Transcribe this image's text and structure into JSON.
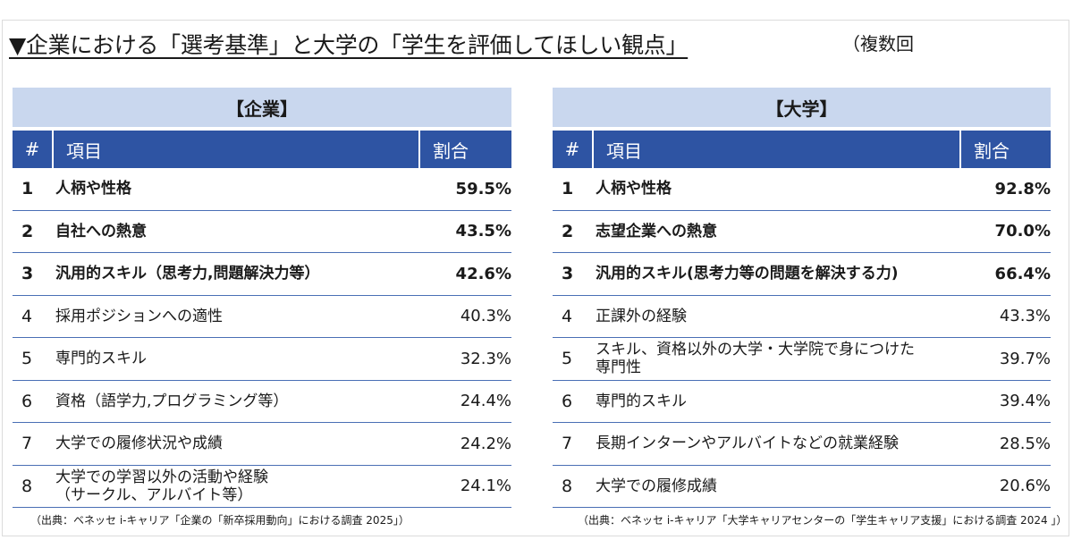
{
  "heading": "▼企業における「選考基準」と大学の「学生を評価してほしい観点」",
  "note": "（複数回",
  "left": {
    "group_title": "【企業】",
    "headers": {
      "num": "#",
      "item": "項目",
      "rate": "割合"
    },
    "rows": [
      {
        "num": "1",
        "item": "人柄や性格",
        "rate": "59.5%",
        "bold": true
      },
      {
        "num": "2",
        "item": "自社への熱意",
        "rate": "43.5%",
        "bold": true
      },
      {
        "num": "3",
        "item": "汎用的スキル（思考力,問題解決力等）",
        "rate": "42.6%",
        "bold": true
      },
      {
        "num": "4",
        "item": "採用ポジションへの適性",
        "rate": "40.3%",
        "bold": false
      },
      {
        "num": "5",
        "item": "専門的スキル",
        "rate": "32.3%",
        "bold": false
      },
      {
        "num": "6",
        "item": "資格（語学力,プログラミング等）",
        "rate": "24.4%",
        "bold": false
      },
      {
        "num": "7",
        "item": "大学での履修状況や成績",
        "rate": "24.2%",
        "bold": false
      },
      {
        "num": "8",
        "item": "大学での学習以外の活動や経験\n（サークル、アルバイト等）",
        "rate": "24.1%",
        "bold": false
      }
    ],
    "source": "（出典：ベネッセ i-キャリア「企業の「新卒採用動向」における調査 2025」）"
  },
  "right": {
    "group_title": "【大学】",
    "headers": {
      "num": "#",
      "item": "項目",
      "rate": "割合"
    },
    "rows": [
      {
        "num": "1",
        "item": "人柄や性格",
        "rate": "92.8%",
        "bold": true
      },
      {
        "num": "2",
        "item": "志望企業への熱意",
        "rate": "70.0%",
        "bold": true
      },
      {
        "num": "3",
        "item": "汎用的スキル(思考力等の問題を解決する力)",
        "rate": "66.4%",
        "bold": true
      },
      {
        "num": "4",
        "item": "正課外の経験",
        "rate": "43.3%",
        "bold": false
      },
      {
        "num": "5",
        "item": "スキル、資格以外の大学・大学院で身につけた\n専門性",
        "rate": "39.7%",
        "bold": false
      },
      {
        "num": "6",
        "item": "専門的スキル",
        "rate": "39.4%",
        "bold": false
      },
      {
        "num": "7",
        "item": "長期インターンやアルバイトなどの就業経験",
        "rate": "28.5%",
        "bold": false
      },
      {
        "num": "8",
        "item": "大学での履修成績",
        "rate": "20.6%",
        "bold": false
      }
    ],
    "source": "（出典：ベネッセ i-キャリア「大学キャリアセンターの「学生キャリア支援」における調査 2024 」）"
  }
}
